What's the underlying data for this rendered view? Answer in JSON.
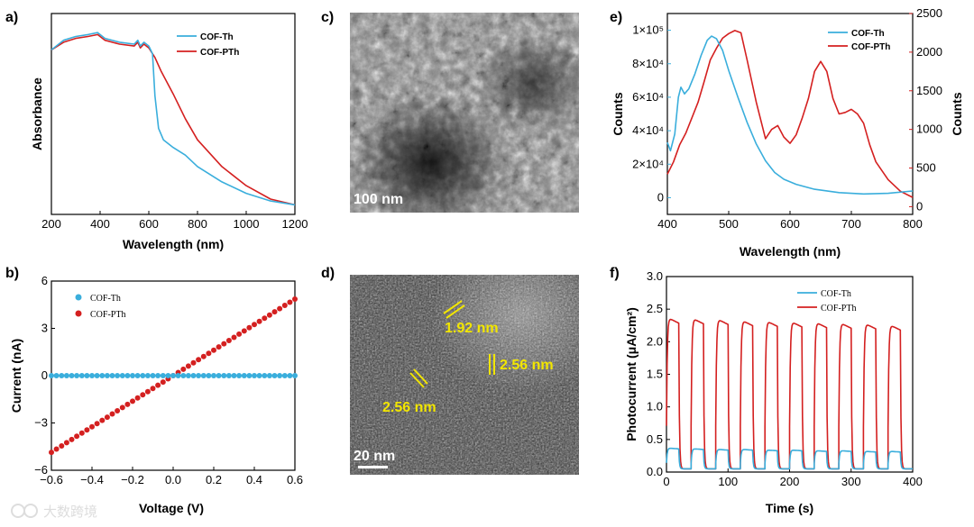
{
  "panels": {
    "a": {
      "label": "a)"
    },
    "b": {
      "label": "b)"
    },
    "c": {
      "label": "c)",
      "scale_bar": "100 nm"
    },
    "d": {
      "label": "d)",
      "scale_bar": "20 nm",
      "annotations": [
        "1.92 nm",
        "2.56 nm",
        "2.56 nm"
      ]
    },
    "e": {
      "label": "e)"
    },
    "f": {
      "label": "f)"
    }
  },
  "watermark": "大数跨境",
  "colors": {
    "cof_th": "#3aaedc",
    "cof_pth": "#d42020",
    "annotation": "#f2e600"
  },
  "chart_data": [
    {
      "id": "a",
      "type": "line",
      "xlabel": "Wavelength (nm)",
      "ylabel": "Absorbance",
      "xlim": [
        200,
        1200
      ],
      "xticks": [
        200,
        400,
        600,
        800,
        1000,
        1200
      ],
      "legend": "top-right",
      "series": [
        {
          "name": "COF-Th",
          "x": [
            200,
            250,
            300,
            350,
            390,
            420,
            480,
            540,
            555,
            565,
            580,
            600,
            615,
            625,
            640,
            660,
            700,
            750,
            800,
            900,
            1000,
            1100,
            1200
          ],
          "y": [
            0.86,
            0.91,
            0.93,
            0.94,
            0.95,
            0.92,
            0.9,
            0.89,
            0.91,
            0.88,
            0.9,
            0.88,
            0.84,
            0.62,
            0.45,
            0.39,
            0.35,
            0.31,
            0.25,
            0.17,
            0.11,
            0.07,
            0.05
          ]
        },
        {
          "name": "COF-PTh",
          "x": [
            200,
            250,
            300,
            350,
            390,
            420,
            480,
            540,
            555,
            565,
            580,
            600,
            625,
            650,
            700,
            750,
            800,
            900,
            1000,
            1100,
            1200
          ],
          "y": [
            0.86,
            0.9,
            0.92,
            0.93,
            0.94,
            0.91,
            0.89,
            0.88,
            0.9,
            0.87,
            0.89,
            0.87,
            0.82,
            0.75,
            0.63,
            0.5,
            0.39,
            0.25,
            0.15,
            0.08,
            0.05
          ]
        }
      ]
    },
    {
      "id": "b",
      "type": "scatter",
      "xlabel": "Voltage (V)",
      "ylabel": "Current (nA)",
      "xlim": [
        -0.6,
        0.6
      ],
      "ylim": [
        -6,
        6
      ],
      "xticks": [
        -0.6,
        -0.4,
        -0.2,
        0.0,
        0.2,
        0.4,
        0.6
      ],
      "xtick_labels": [
        "−0.6",
        "−0.4",
        "−0.2",
        "0.0",
        "0.2",
        "0.4",
        "0.6"
      ],
      "yticks": [
        -6,
        -3,
        0,
        3,
        6
      ],
      "ytick_labels": [
        "−6",
        "−3",
        "0",
        "3",
        "6"
      ],
      "legend": "top-left",
      "series": [
        {
          "name": "COF-Th",
          "slope": 0.0,
          "x_start": -0.6,
          "x_end": 0.6,
          "n_points": 49
        },
        {
          "name": "COF-PTh",
          "slope": 8.1,
          "x_start": -0.6,
          "x_end": 0.6,
          "n_points": 49
        }
      ]
    },
    {
      "id": "e",
      "type": "line",
      "xlabel": "Wavelength (nm)",
      "ylabel_left": "Counts",
      "ylabel_right": "Counts",
      "xlim": [
        400,
        800
      ],
      "xticks": [
        400,
        500,
        600,
        700,
        800
      ],
      "ylim_left": [
        -10000,
        110000
      ],
      "yticks_left": [
        0,
        20000,
        40000,
        60000,
        80000,
        100000
      ],
      "ytick_labels_left": [
        "0",
        "2×10⁴",
        "4×10⁴",
        "6×10⁴",
        "8×10⁴",
        "1×10⁵"
      ],
      "ylim_right": [
        -100,
        2500
      ],
      "yticks_right": [
        0,
        500,
        1000,
        1500,
        2000,
        2500
      ],
      "legend": "top-right",
      "series": [
        {
          "name": "COF-Th",
          "axis": "left",
          "x": [
            400,
            405,
            412,
            418,
            422,
            428,
            435,
            445,
            455,
            465,
            472,
            480,
            490,
            500,
            515,
            530,
            545,
            560,
            575,
            590,
            610,
            640,
            680,
            720,
            760,
            800
          ],
          "y": [
            33000,
            28000,
            38000,
            60000,
            66000,
            62000,
            65000,
            74000,
            85000,
            94000,
            96500,
            95000,
            88000,
            76000,
            60000,
            45000,
            32000,
            22000,
            15000,
            11000,
            8000,
            5000,
            3000,
            2200,
            2600,
            4000
          ]
        },
        {
          "name": "COF-PTh",
          "axis": "right",
          "x": [
            400,
            410,
            420,
            430,
            440,
            450,
            460,
            470,
            480,
            490,
            500,
            510,
            520,
            530,
            545,
            560,
            570,
            580,
            590,
            600,
            610,
            620,
            630,
            640,
            650,
            660,
            670,
            680,
            690,
            700,
            710,
            720,
            730,
            740,
            760,
            780,
            800
          ],
          "y": [
            420,
            580,
            800,
            950,
            1150,
            1350,
            1620,
            1900,
            2050,
            2180,
            2240,
            2280,
            2250,
            1900,
            1350,
            880,
            1000,
            1050,
            900,
            820,
            930,
            1150,
            1400,
            1750,
            1880,
            1750,
            1400,
            1200,
            1220,
            1260,
            1200,
            1080,
            800,
            580,
            350,
            200,
            120
          ]
        }
      ]
    },
    {
      "id": "f",
      "type": "line",
      "xlabel": "Time (s)",
      "ylabel": "Photocurrent (μA/cm²)",
      "xlim": [
        0,
        400
      ],
      "ylim": [
        0,
        3.0
      ],
      "xticks": [
        0,
        100,
        200,
        300,
        400
      ],
      "yticks": [
        0.0,
        0.5,
        1.0,
        1.5,
        2.0,
        2.5,
        3.0
      ],
      "ytick_labels": [
        "0.0",
        "0.5",
        "1.0",
        "1.5",
        "2.0",
        "2.5",
        "3.0"
      ],
      "legend": "top-right",
      "series": [
        {
          "name": "COF-Th",
          "on_level": [
            0.37,
            0.36,
            0.35,
            0.35,
            0.34,
            0.34,
            0.33,
            0.33,
            0.32,
            0.32
          ],
          "off_level": 0.05
        },
        {
          "name": "COF-PTh",
          "on_level": [
            2.38,
            2.37,
            2.36,
            2.34,
            2.33,
            2.32,
            2.31,
            2.3,
            2.29,
            2.27
          ],
          "off_level": 0.05
        }
      ],
      "cycle_period_s": 40,
      "on_duration_s": 20,
      "first_on_s": 0
    }
  ]
}
